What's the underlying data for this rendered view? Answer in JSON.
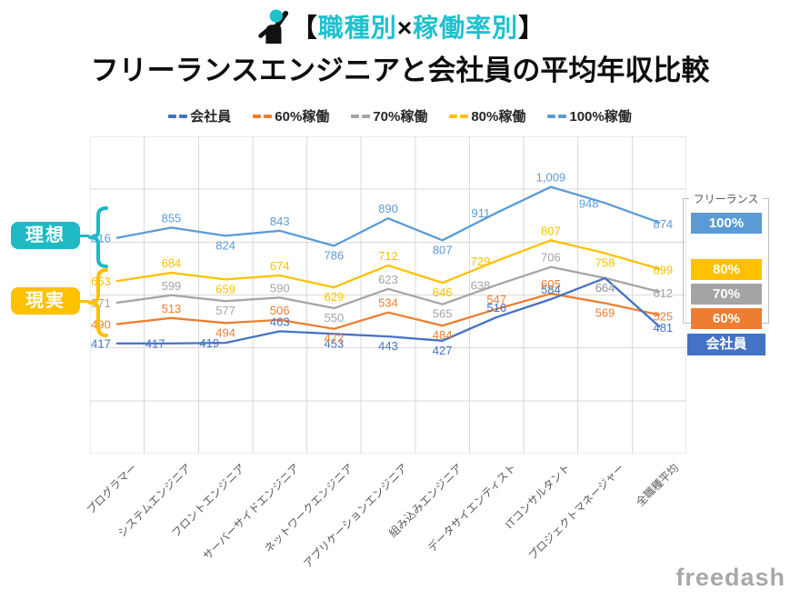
{
  "header": {
    "icon": "person-raising-hand-icon",
    "title_line1": [
      {
        "text": "【",
        "color": "#0d0d0d"
      },
      {
        "text": "職種別",
        "color": "#1EC1CE"
      },
      {
        "text": "×",
        "color": "#0d0d0d"
      },
      {
        "text": "稼働率別",
        "color": "#1EC1CE"
      },
      {
        "text": "】",
        "color": "#0d0d0d"
      }
    ],
    "title_line2": "フリーランスエンジニアと会社員の平均年収比較"
  },
  "legend": {
    "items": [
      {
        "label": "会社員",
        "color": "#4472C4"
      },
      {
        "label": "60%稼働",
        "color": "#ED7D31"
      },
      {
        "label": "70%稼働",
        "color": "#A5A5A5"
      },
      {
        "label": "80%稼働",
        "color": "#FFC000"
      },
      {
        "label": "100%稼働",
        "color": "#5B9BD5"
      }
    ]
  },
  "chart_data": {
    "type": "line",
    "title": "【職種別×稼働率別】フリーランスエンジニアと会社員の平均年収比較",
    "categories": [
      "プログラマー",
      "システムエンジニア",
      "フロントエンジニア",
      "サーバーサイドエンジニア",
      "ネットワークエンジニア",
      "アプリケーションエンジニア",
      "組み込みエンジニア",
      "データサイエンティスト",
      "ITコンサルタント",
      "プロジェクトマネージャー",
      "全職種平均"
    ],
    "series": [
      {
        "name": "会社員",
        "color": "#4472C4",
        "values": [
          417,
          417,
          419,
          463,
          453,
          443,
          427,
          516,
          584,
          664,
          481
        ],
        "label_pos": [
          "l",
          "l",
          "l",
          "a",
          "b",
          "b",
          "b",
          "a",
          "a",
          "b",
          "e"
        ]
      },
      {
        "name": "60%稼働",
        "color": "#ED7D31",
        "values": [
          490,
          513,
          494,
          506,
          472,
          534,
          484,
          547,
          605,
          569,
          525
        ],
        "label_pos": [
          "l",
          "a",
          "b",
          "a",
          "b",
          "a",
          "b",
          "a",
          "a",
          "b",
          "e"
        ]
      },
      {
        "name": "70%稼働",
        "color": "#A5A5A5",
        "values": [
          571,
          599,
          577,
          590,
          550,
          623,
          565,
          638,
          706,
          664,
          612
        ],
        "label_pos": [
          "l",
          "a",
          "b",
          "a",
          "b",
          "a",
          "b",
          "l",
          "a",
          "b",
          "e"
        ]
      },
      {
        "name": "80%稼働",
        "color": "#FFC000",
        "values": [
          653,
          684,
          659,
          674,
          629,
          712,
          646,
          729,
          807,
          758,
          699
        ],
        "label_pos": [
          "l",
          "a",
          "b",
          "a",
          "b",
          "a",
          "b",
          "l",
          "a",
          "b",
          "e"
        ]
      },
      {
        "name": "100%稼働",
        "color": "#5B9BD5",
        "values": [
          816,
          855,
          824,
          843,
          786,
          890,
          807,
          911,
          1009,
          948,
          874
        ],
        "label_pos": [
          "l",
          "a",
          "b",
          "a",
          "b",
          "a",
          "b",
          "l",
          "a",
          "l",
          "e"
        ]
      }
    ],
    "ylim": [
      0,
      1200
    ],
    "y_gridline_step": 200,
    "grid": true,
    "data_labels": true,
    "legend_position": "top"
  },
  "annotations": {
    "ideal": {
      "label": "理想",
      "color": "#1FB9C4"
    },
    "reality": {
      "label": "現実",
      "color": "#FFC000"
    }
  },
  "right_panel": {
    "title": "フリーランス",
    "badges": [
      {
        "label": "100%",
        "color": "#5B9BD5"
      },
      {
        "label": "80%",
        "color": "#FFC000"
      },
      {
        "label": "70%",
        "color": "#A5A5A5"
      },
      {
        "label": "60%",
        "color": "#ED7D31"
      }
    ],
    "employee_badge": {
      "label": "会社員",
      "color": "#4472C4"
    }
  },
  "footer": {
    "logo": "freedash"
  }
}
